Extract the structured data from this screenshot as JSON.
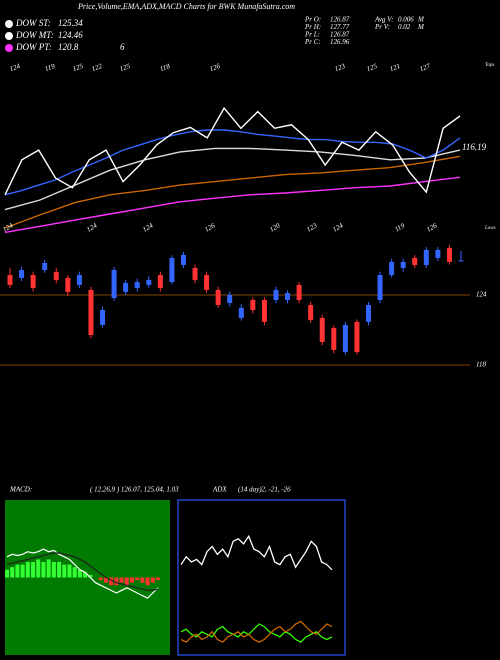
{
  "header": {
    "title": "Price,Volume,EMA,ADX,MACD Charts for BWK MunafaSutra.com",
    "dow": [
      {
        "name": "DOW ST:",
        "value": 125.34,
        "color": "#ffffff"
      },
      {
        "name": "DOW MT:",
        "value": 124.46,
        "color": "#ffffff"
      },
      {
        "name": "DOW PT:",
        "value": 120.8,
        "color": "#ff33ff"
      }
    ],
    "dow_extra": "6",
    "quote": [
      {
        "label": "Pr  O:",
        "value": 126.87
      },
      {
        "label": "Pr  H:",
        "value": 127.77
      },
      {
        "label": "Pr  L:",
        "value": 126.87
      },
      {
        "label": "Pr  C:",
        "value": 126.96
      }
    ],
    "volume": [
      {
        "label": "Avg V:",
        "value": 0.006,
        "unit": "M"
      },
      {
        "label": "Pr  V:",
        "value": 0.02,
        "unit": "M"
      }
    ]
  },
  "chart_data": [
    {
      "type": "line",
      "ylim": [
        110,
        130
      ],
      "top_labels": [
        "124",
        "119",
        "125",
        "122",
        "125",
        "118",
        "126",
        "123",
        "125",
        "121",
        "127"
      ],
      "bottom_labels": [
        "124",
        "124",
        "124",
        "126",
        "120",
        "123",
        "124",
        "119",
        "126"
      ],
      "end_label": "116.19",
      "tops_label": "Tops",
      "lows_label": "Lows",
      "series": [
        {
          "color": "#ff33ff",
          "values": [
            110.3,
            111.0,
            111.7,
            112.4,
            113.1,
            113.8,
            114.2,
            114.6,
            114.8,
            115.1,
            115.4,
            115.6,
            116.1,
            116.6
          ]
        },
        {
          "color": "#cc6600",
          "values": [
            110.8,
            112.3,
            113.7,
            114.6,
            115.1,
            115.7,
            116.1,
            116.5,
            116.9,
            117.1,
            117.4,
            117.7,
            118.3,
            119.0
          ]
        },
        {
          "color": "#dddddd",
          "values": [
            112.9,
            114.0,
            115.7,
            117.4,
            118.6,
            119.5,
            119.9,
            119.9,
            119.7,
            119.5,
            119.1,
            118.6,
            118.8,
            119.7
          ]
        },
        {
          "color": "#3366ff",
          "values": [
            114.6,
            115.1,
            115.7,
            116.3,
            117.2,
            118.0,
            118.8,
            119.7,
            120.3,
            120.9,
            121.4,
            121.8,
            122.0,
            122.0,
            121.8,
            121.5,
            121.3,
            121.1,
            120.9,
            120.9,
            120.7,
            120.6,
            120.6,
            120.4,
            119.7,
            118.8,
            119.7,
            121.1
          ]
        },
        {
          "color": "#ffffff",
          "values": [
            114.6,
            118.6,
            119.7,
            116.5,
            115.4,
            118.6,
            119.7,
            116.1,
            118.0,
            120.3,
            121.7,
            122.3,
            121.1,
            124.5,
            122.2,
            124.1,
            122.2,
            122.6,
            120.9,
            118.0,
            120.6,
            119.7,
            121.8,
            120.3,
            117.2,
            114.9,
            122.2,
            123.6
          ]
        }
      ]
    },
    {
      "type": "candlestick",
      "ylim": [
        117.57,
        128.71
      ],
      "yticks": [
        118,
        124
      ],
      "up_color": "#3366ff",
      "down_color": "#ff3333",
      "open": [
        125.71,
        125.46,
        125.71,
        126.14,
        125.97,
        125.46,
        124.86,
        124.43,
        121.43,
        123.74,
        124.26,
        124.6,
        124.86,
        125.71,
        125.11,
        126.57,
        126.31,
        125.71,
        124.43,
        123.31,
        122.03,
        123.57,
        123.57,
        123.57,
        123.57,
        124.86,
        123.14,
        122.03,
        121.17,
        119.11,
        121.69,
        121.69,
        123.57,
        125.71,
        126.31,
        127.17,
        126.57,
        127.17,
        128.03,
        126.87
      ],
      "high": [
        126.3,
        126.4,
        126.0,
        127.0,
        126.3,
        125.7,
        126.0,
        124.7,
        123.0,
        126.4,
        125.3,
        125.4,
        125.6,
        126.0,
        127.4,
        127.7,
        126.6,
        126.0,
        124.7,
        124.3,
        123.2,
        123.8,
        123.8,
        124.7,
        124.4,
        125.1,
        123.4,
        122.3,
        121.4,
        121.7,
        121.9,
        123.4,
        126.0,
        127.1,
        127.1,
        127.4,
        128.1,
        128.1,
        128.3,
        127.77
      ],
      "low": [
        124.6,
        125.2,
        124.3,
        125.9,
        125.0,
        123.9,
        124.6,
        120.3,
        121.2,
        123.5,
        124.0,
        124.3,
        124.6,
        124.3,
        124.9,
        126.3,
        125.0,
        124.2,
        122.9,
        123.0,
        121.8,
        122.4,
        121.4,
        123.3,
        123.3,
        123.3,
        121.6,
        119.7,
        119.0,
        118.9,
        118.9,
        121.4,
        123.3,
        125.5,
        126.0,
        126.3,
        126.3,
        126.9,
        126.6,
        126.87
      ],
      "close": [
        124.86,
        126.14,
        124.6,
        126.74,
        125.29,
        124.26,
        125.71,
        120.57,
        122.71,
        126.14,
        125.03,
        125.11,
        125.29,
        124.6,
        127.17,
        127.43,
        125.29,
        124.43,
        123.14,
        124.0,
        122.89,
        122.71,
        121.69,
        124.43,
        124.17,
        123.57,
        121.86,
        119.97,
        119.29,
        121.43,
        119.11,
        123.14,
        125.71,
        126.83,
        126.83,
        126.57,
        127.86,
        127.86,
        126.83,
        126.96
      ]
    },
    {
      "type": "macd",
      "label": "MACD:",
      "params": "( 12,26,9 ) 126.07, 125.04, 1.03",
      "ylim": [
        -3,
        3
      ],
      "histogram": [
        0.3,
        0.4,
        0.5,
        0.5,
        0.6,
        0.6,
        0.7,
        0.6,
        0.7,
        0.6,
        0.6,
        0.5,
        0.5,
        0.4,
        0.3,
        0.2,
        0.1,
        0.0,
        -0.1,
        -0.2,
        -0.3,
        -0.3,
        -0.2,
        -0.3,
        -0.2,
        -0.1,
        -0.2,
        -0.3,
        -0.2,
        -0.1
      ],
      "series": [
        {
          "color": "#ffffff",
          "values": [
            0.8,
            0.9,
            0.85,
            0.9,
            1.0,
            0.95,
            1.0,
            1.1,
            1.0,
            1.05,
            0.9,
            0.8,
            0.7,
            0.5,
            0.3,
            0.2,
            0.0,
            -0.2,
            -0.3,
            -0.4,
            -0.5,
            -0.6,
            -0.5,
            -0.4,
            -0.5,
            -0.6,
            -0.7,
            -0.8,
            -0.6,
            -0.4
          ]
        },
        {
          "color": "#222222",
          "values": [
            0.5,
            0.55,
            0.6,
            0.65,
            0.7,
            0.75,
            0.8,
            0.85,
            0.9,
            0.95,
            0.95,
            0.9,
            0.85,
            0.8,
            0.7,
            0.6,
            0.45,
            0.3,
            0.15,
            0.0,
            -0.1,
            -0.2,
            -0.25,
            -0.3,
            -0.35,
            -0.4,
            -0.45,
            -0.5,
            -0.5,
            -0.45
          ]
        }
      ]
    },
    {
      "type": "adx",
      "label": "ADX",
      "params": "(14 day)2, -21, -26",
      "ylim": [
        0,
        60
      ],
      "series": [
        {
          "color": "#ffffff",
          "values": [
            35,
            38,
            36,
            37,
            35,
            40,
            42,
            39,
            41,
            38,
            44,
            45,
            43,
            46,
            41,
            40,
            38,
            42,
            36,
            35,
            38,
            39,
            34,
            37,
            40,
            44,
            42,
            36,
            35,
            33
          ]
        },
        {
          "color": "#33ff00",
          "values": [
            9,
            10,
            8,
            7,
            9,
            8,
            7,
            10,
            11,
            9,
            8,
            7,
            9,
            8,
            10,
            12,
            11,
            9,
            8,
            7,
            9,
            8,
            6,
            5,
            7,
            8,
            9,
            7,
            6,
            7
          ]
        },
        {
          "color": "#cc6600",
          "values": [
            6,
            5,
            7,
            8,
            6,
            7,
            9,
            6,
            5,
            7,
            8,
            9,
            7,
            8,
            6,
            5,
            6,
            8,
            10,
            11,
            9,
            10,
            12,
            13,
            11,
            9,
            8,
            10,
            12,
            11
          ]
        }
      ]
    }
  ]
}
